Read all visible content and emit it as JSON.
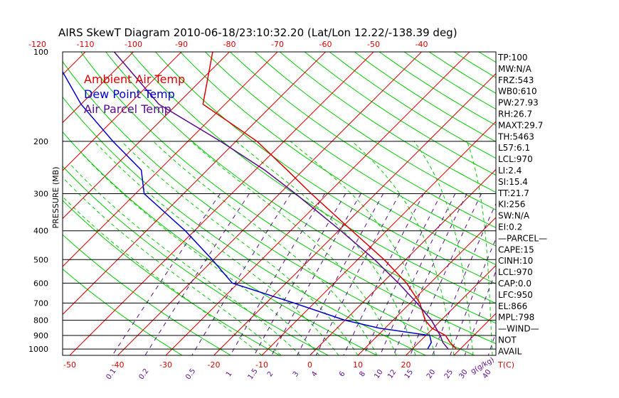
{
  "title": "AIRS SkewT Diagram 2010-06-18/23:10:32.20 (Lat/Lon 12.22/-138.39 deg)",
  "ylabel": "PRESSURE (MB)",
  "legend": [
    {
      "label": "Ambient Air Temp",
      "color": "#dd0000"
    },
    {
      "label": "Dew Point Temp",
      "color": "#0000cc"
    },
    {
      "label": "Air Parcel Temp",
      "color": "#5a0a8a"
    }
  ],
  "indices": [
    "TP:100",
    "MW:N/A",
    "FRZ:543",
    "WB0:610",
    "PW:27.93",
    "RH:26.7",
    "MAXT:29.7",
    "TH:5463",
    "L57:6.1",
    "LCL:970",
    "LI:2.4",
    "SI:15.4",
    "TT:21.7",
    "KI:256",
    "SW:N/A",
    "EI:0.2",
    "—PARCEL—",
    "CAPE:15",
    "CINH:10",
    "LCL:970",
    "CAP:0.0",
    "LFC:950",
    "EL:866",
    "MPL:798",
    "—WIND—",
    "NOT",
    "AVAIL"
  ],
  "colors": {
    "dry_adiabat": "#00cc00",
    "moist_adiabat": "#00cc00",
    "mixing_ratio": "#5a0a8a",
    "isotherm": "#dd0000",
    "isobar": "#000000"
  },
  "chart_data": {
    "type": "line",
    "title": "AIRS SkewT Diagram 2010-06-18/23:10:32.20 (Lat/Lon 12.22/-138.39 deg)",
    "ylabel": "PRESSURE (MB)",
    "xlabel": "T(C)",
    "y_scale": "log-pressure",
    "pressure_ticks": [
      100,
      200,
      300,
      400,
      500,
      600,
      700,
      800,
      900,
      1000
    ],
    "pressure_tick_labels": [
      "100",
      "200",
      "300",
      "400",
      "500",
      "600",
      "700",
      "800",
      "900",
      "1000"
    ],
    "top_temp_ticks": [
      -120,
      -110,
      -100,
      -90,
      -80,
      -70,
      -60,
      -50,
      -40
    ],
    "top_temp_tick_labels": [
      "-120",
      "-110",
      "-100",
      "-90",
      "-80",
      "-70",
      "-60",
      "-50",
      "-40"
    ],
    "bottom_temp_ticks": [
      -50,
      -40,
      -30,
      -20,
      -10,
      0,
      10,
      20
    ],
    "bottom_temp_tick_labels": [
      "-50",
      "-40",
      "-30",
      "-20",
      "-10",
      "0",
      "10",
      "20"
    ],
    "bottom_temp_unit_label": "T(C)",
    "mixing_ratio_labels": [
      "0.1",
      "0.2",
      "0.5",
      "1",
      "1.5",
      "2",
      "3",
      "4",
      "6",
      "8",
      "10",
      "12",
      "15",
      "20",
      "25",
      "30",
      "40"
    ],
    "mixing_ratio_unit_label": "g(g/kg)",
    "series": [
      {
        "name": "Ambient Air Temp",
        "color": "#dd0000",
        "points": [
          [
            100,
            -83.5
          ],
          [
            150,
            -74.6
          ],
          [
            200,
            -55.6
          ],
          [
            250,
            -43.3
          ],
          [
            300,
            -33.4
          ],
          [
            400,
            -17.2
          ],
          [
            500,
            -4.5
          ],
          [
            600,
            5.1
          ],
          [
            700,
            12.0
          ],
          [
            800,
            16.7
          ],
          [
            850,
            19.7
          ],
          [
            900,
            24.1
          ],
          [
            950,
            26.5
          ],
          [
            1000,
            29.2
          ]
        ]
      },
      {
        "name": "Dew Point Temp",
        "color": "#0000cc",
        "points": [
          [
            100,
            -117.1
          ],
          [
            150,
            -100.0
          ],
          [
            200,
            -85.6
          ],
          [
            250,
            -73.7
          ],
          [
            300,
            -68.2
          ],
          [
            400,
            -51.9
          ],
          [
            500,
            -40.3
          ],
          [
            600,
            -31.2
          ],
          [
            700,
            -14.2
          ],
          [
            800,
            0.0
          ],
          [
            850,
            8.7
          ],
          [
            900,
            20.8
          ],
          [
            950,
            22.6
          ],
          [
            1000,
            23.2
          ]
        ]
      },
      {
        "name": "Air Parcel Temp",
        "color": "#5a0a8a",
        "points": [
          [
            100,
            -104.0
          ],
          [
            150,
            -83.8
          ],
          [
            200,
            -63.2
          ],
          [
            250,
            -48.0
          ],
          [
            300,
            -36.7
          ],
          [
            400,
            -19.5
          ],
          [
            500,
            -6.5
          ],
          [
            600,
            3.4
          ],
          [
            700,
            11.4
          ],
          [
            800,
            18.0
          ],
          [
            900,
            23.0
          ],
          [
            950,
            25.0
          ],
          [
            1000,
            27.5
          ]
        ]
      }
    ]
  }
}
